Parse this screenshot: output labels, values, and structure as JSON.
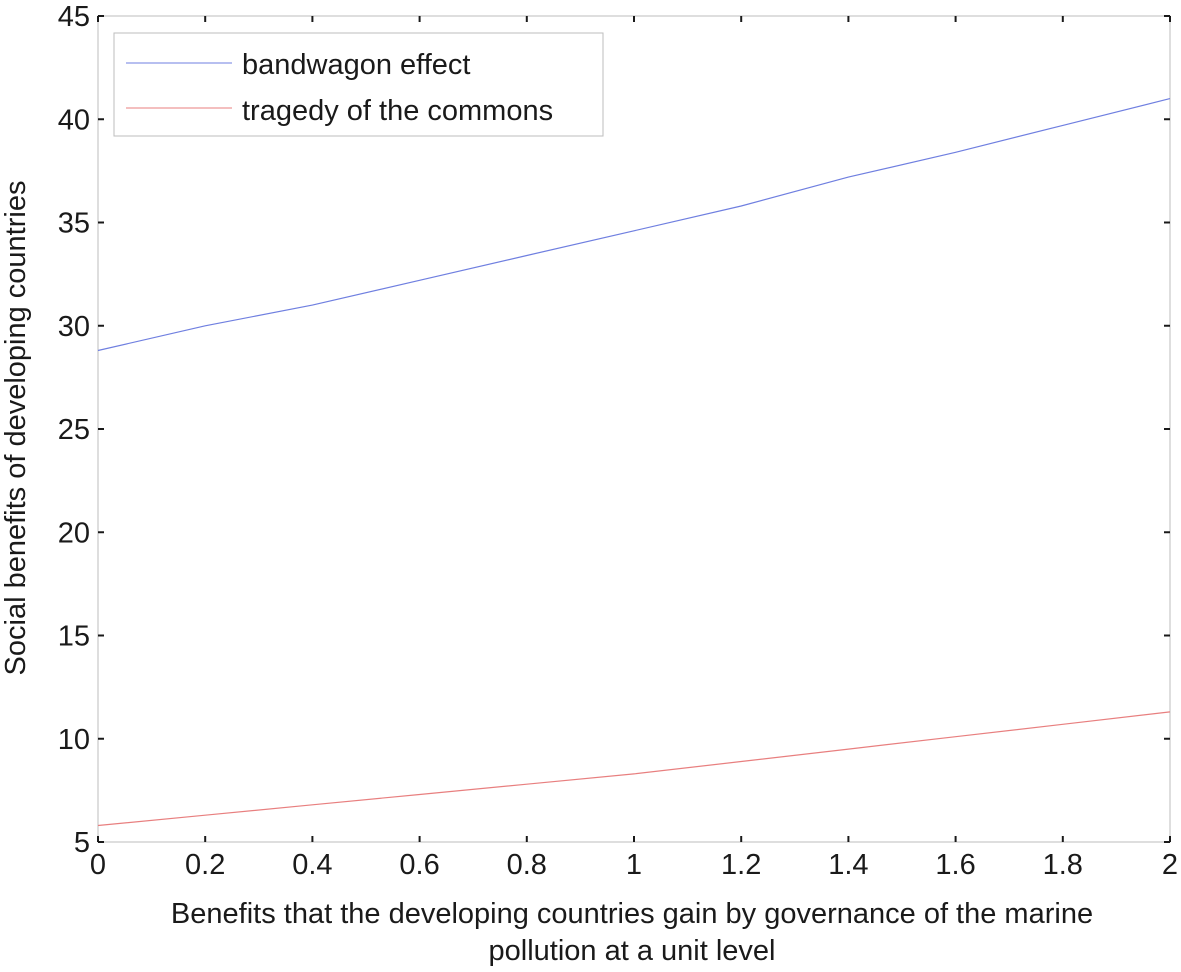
{
  "chart_data": {
    "type": "line",
    "title": "",
    "xlabel": "Benefits that the developing countries gain by governance of the marine pollution at a unit level",
    "xlabel_lines": [
      "Benefits that the developing countries gain by governance of the marine",
      "pollution at a unit level"
    ],
    "ylabel": "Social benefits of developing countries",
    "xlim": [
      0,
      2
    ],
    "ylim": [
      5,
      45
    ],
    "xticks": [
      0,
      0.2,
      0.4,
      0.6,
      0.8,
      1,
      1.2,
      1.4,
      1.6,
      1.8,
      2
    ],
    "xtick_labels": [
      "0",
      "0.2",
      "0.4",
      "0.6",
      "0.8",
      "1",
      "1.2",
      "1.4",
      "1.6",
      "1.8",
      "2"
    ],
    "yticks": [
      5,
      10,
      15,
      20,
      25,
      30,
      35,
      40,
      45
    ],
    "ytick_labels": [
      "5",
      "10",
      "15",
      "20",
      "25",
      "30",
      "35",
      "40",
      "45"
    ],
    "grid": false,
    "legend_position": "top-left",
    "series": [
      {
        "name": "bandwagon effect",
        "color": "#6f7fe0",
        "x": [
          0,
          0.2,
          0.4,
          0.6,
          0.8,
          1,
          1.2,
          1.4,
          1.6,
          1.8,
          2
        ],
        "y": [
          28.8,
          30.0,
          31.0,
          32.2,
          33.4,
          34.6,
          35.8,
          37.2,
          38.4,
          39.7,
          41.0
        ]
      },
      {
        "name": "tragedy of the commons",
        "color": "#e87f7f",
        "x": [
          0,
          0.2,
          0.4,
          0.6,
          0.8,
          1,
          1.2,
          1.4,
          1.6,
          1.8,
          2
        ],
        "y": [
          5.8,
          6.3,
          6.8,
          7.3,
          7.8,
          8.3,
          8.9,
          9.5,
          10.1,
          10.7,
          11.3
        ]
      }
    ]
  }
}
